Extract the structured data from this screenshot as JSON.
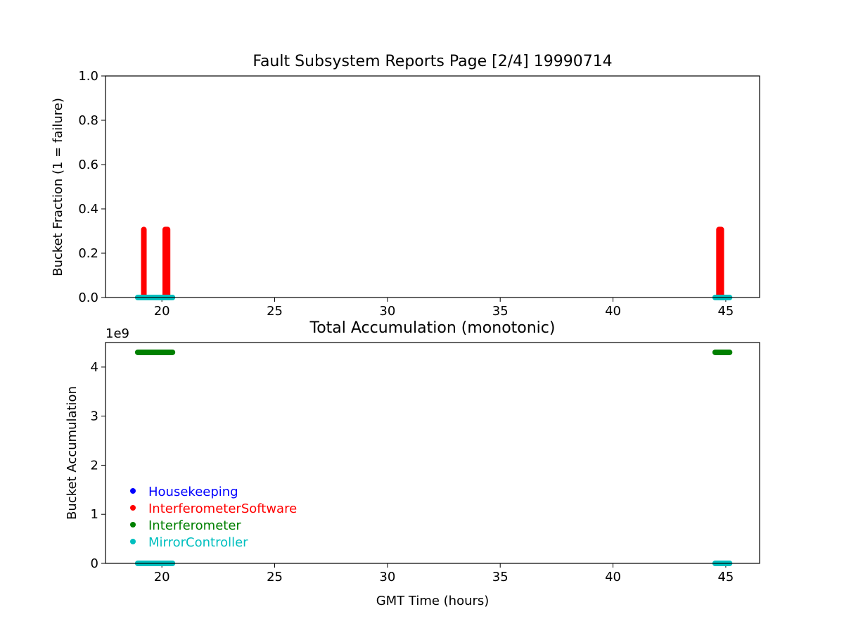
{
  "chart_data": [
    {
      "type": "scatter",
      "title": "Fault Subsystem Reports Page [2/4] 19990714",
      "xlabel": "",
      "ylabel": "Bucket Fraction (1 = failure)",
      "xlim": [
        17.5,
        46.5
      ],
      "ylim": [
        0,
        1.0
      ],
      "xticks": [
        "20",
        "25",
        "30",
        "35",
        "40",
        "45"
      ],
      "yticks": [
        "0.0",
        "0.2",
        "0.4",
        "0.6",
        "0.8",
        "1.0"
      ],
      "grid": false,
      "series": [
        {
          "name": "InterferometerSoftware",
          "color": "#ff0000",
          "segments": [
            {
              "x": [
                19.2,
                19.2
              ],
              "y": [
                0,
                0.31
              ]
            },
            {
              "x": [
                20.15,
                20.25
              ],
              "y": [
                0,
                0.31
              ]
            },
            {
              "x": [
                44.7,
                44.8
              ],
              "y": [
                0,
                0.31
              ]
            }
          ]
        },
        {
          "name": "MirrorController",
          "color": "#00bfbf",
          "segments": [
            {
              "x": [
                18.9,
                20.5
              ],
              "y": [
                0,
                0
              ]
            },
            {
              "x": [
                44.5,
                45.2
              ],
              "y": [
                0,
                0
              ]
            }
          ]
        }
      ]
    },
    {
      "type": "scatter",
      "title": "Total Accumulation (monotonic)",
      "xlabel": "GMT Time (hours)",
      "ylabel": "Bucket Accumulation",
      "offset_text": "1e9",
      "xlim": [
        17.5,
        46.5
      ],
      "ylim": [
        0,
        4.5
      ],
      "xticks": [
        "20",
        "25",
        "30",
        "35",
        "40",
        "45"
      ],
      "yticks": [
        "0",
        "1",
        "2",
        "3",
        "4"
      ],
      "grid": false,
      "legend_position": "lower-left",
      "legend": [
        {
          "label": "Housekeeping",
          "color": "#0000ff"
        },
        {
          "label": "InterferometerSoftware",
          "color": "#ff0000"
        },
        {
          "label": "Interferometer",
          "color": "#008000"
        },
        {
          "label": "MirrorController",
          "color": "#00bfbf"
        }
      ],
      "series": [
        {
          "name": "Interferometer",
          "color": "#008000",
          "segments": [
            {
              "x": [
                18.9,
                20.5
              ],
              "y": [
                4.3,
                4.3
              ]
            },
            {
              "x": [
                44.5,
                45.2
              ],
              "y": [
                4.3,
                4.3
              ]
            }
          ]
        },
        {
          "name": "MirrorController",
          "color": "#00bfbf",
          "segments": [
            {
              "x": [
                18.9,
                20.5
              ],
              "y": [
                0,
                0
              ]
            },
            {
              "x": [
                44.5,
                45.2
              ],
              "y": [
                0,
                0
              ]
            }
          ]
        }
      ]
    }
  ]
}
